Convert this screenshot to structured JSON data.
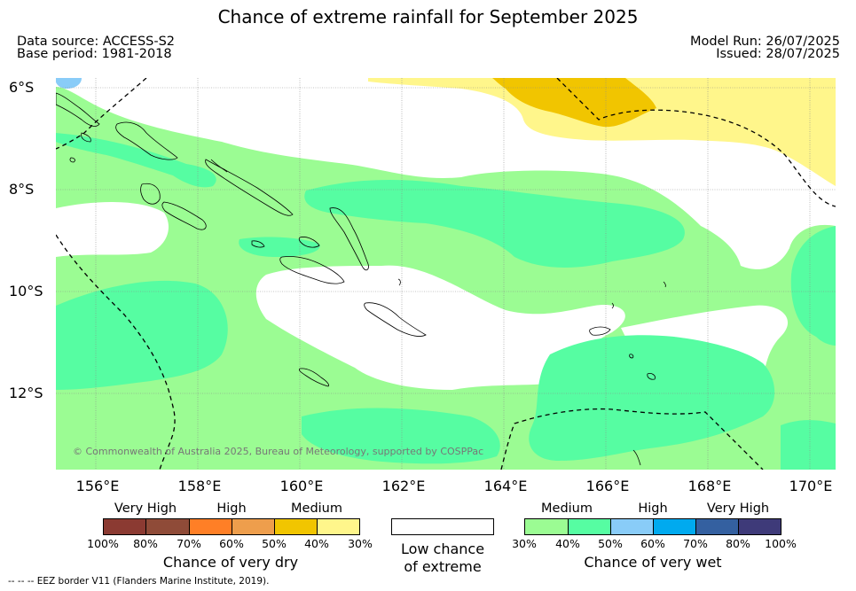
{
  "title": "Chance of extreme rainfall for September 2025",
  "meta": {
    "data_source": "Data source: ACCESS-S2",
    "base_period": "Base period: 1981-2018",
    "model_run": "Model Run: 26/07/2025",
    "issued": "Issued: 28/07/2025"
  },
  "map": {
    "lat_labels": [
      "6°S",
      "8°S",
      "10°S",
      "12°S"
    ],
    "lon_labels": [
      "156°E",
      "158°E",
      "160°E",
      "162°E",
      "164°E",
      "166°E",
      "168°E",
      "170°E"
    ],
    "copyright": "© Commonwealth of Australia 2025, Bureau of Meteorology, supported by COSPPac"
  },
  "legend": {
    "dry": {
      "headings": [
        "Very High",
        "High",
        "Medium"
      ],
      "ticks": [
        "100%",
        "80%",
        "70%",
        "60%",
        "50%",
        "40%",
        "30%"
      ],
      "colors": [
        "#8b3a32",
        "#8f4b38",
        "#ff7f26",
        "#ee9e4c",
        "#f1c500",
        "#fff68b"
      ],
      "caption": "Chance of very dry"
    },
    "low": {
      "caption_line1": "Low chance",
      "caption_line2": "of extreme"
    },
    "wet": {
      "headings": [
        "Medium",
        "High",
        "Very High"
      ],
      "ticks": [
        "30%",
        "40%",
        "50%",
        "60%",
        "70%",
        "80%",
        "100%"
      ],
      "colors": [
        "#9bfc93",
        "#56fda2",
        "#89ccf8",
        "#00aaef",
        "#3460a0",
        "#3e3a79"
      ],
      "caption": "Chance of very wet"
    }
  },
  "eez_note": "--  --  -- EEZ border V11 (Flanders Marine Institute, 2019)."
}
